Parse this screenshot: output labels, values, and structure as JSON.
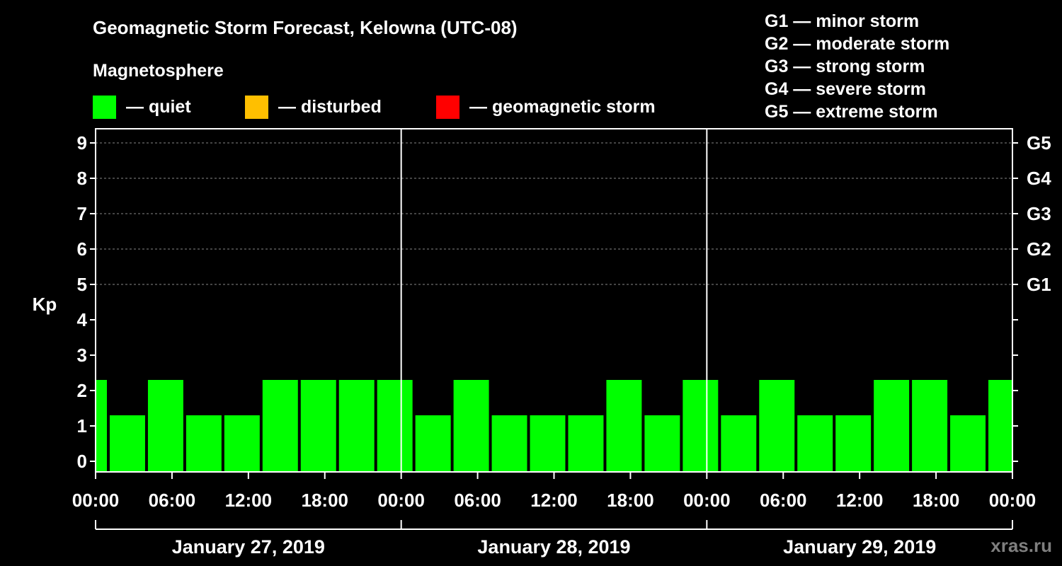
{
  "title": "Geomagnetic Storm Forecast, Kelowna (UTC-08)",
  "section_label": "Magnetosphere",
  "legend": [
    {
      "label": "— quiet",
      "color": "#00ff00"
    },
    {
      "label": "— disturbed",
      "color": "#ffbf00"
    },
    {
      "label": "— geomagnetic storm",
      "color": "#ff0000"
    }
  ],
  "storm_scale": [
    "G1 — minor storm",
    "G2 — moderate storm",
    "G3 — strong storm",
    "G4 — severe storm",
    "G5 — extreme storm"
  ],
  "watermark": "xras.ru",
  "chart_data": {
    "type": "bar",
    "ylabel": "Kp",
    "ylim": [
      0,
      9
    ],
    "y_ticks": [
      0,
      1,
      2,
      3,
      4,
      5,
      6,
      7,
      8,
      9
    ],
    "right_axis_labels": [
      {
        "kp": 5,
        "label": "G1"
      },
      {
        "kp": 6,
        "label": "G2"
      },
      {
        "kp": 7,
        "label": "G3"
      },
      {
        "kp": 8,
        "label": "G4"
      },
      {
        "kp": 9,
        "label": "G5"
      }
    ],
    "gridlines_at": [
      5,
      6,
      7,
      8,
      9
    ],
    "x_hours_range": [
      0,
      72
    ],
    "x_tick_labels": [
      "00:00",
      "06:00",
      "12:00",
      "18:00",
      "00:00",
      "06:00",
      "12:00",
      "18:00",
      "00:00",
      "06:00",
      "12:00",
      "18:00",
      "00:00"
    ],
    "days": [
      "January 27, 2019",
      "January 28, 2019",
      "January 29, 2019"
    ],
    "series": [
      {
        "name": "Kp",
        "interval_hours": 3,
        "start_hour": -2,
        "values": [
          2,
          1,
          2,
          1,
          1,
          2,
          2,
          2,
          2,
          1,
          2,
          1,
          1,
          1,
          2,
          1,
          2,
          1,
          2,
          1,
          1,
          2,
          2,
          1,
          2
        ],
        "color": "#00ff00"
      }
    ]
  }
}
